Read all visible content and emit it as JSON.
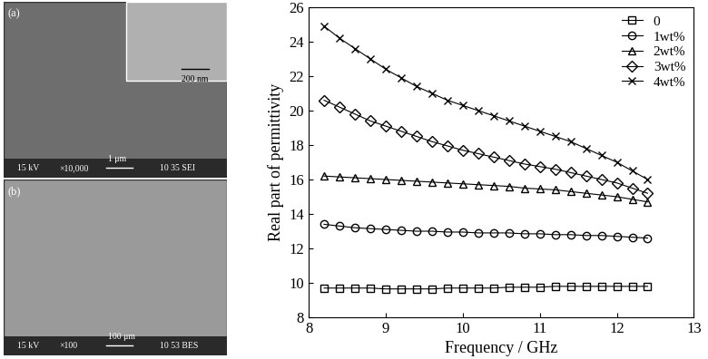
{
  "chart_data": {
    "type": "line",
    "xlabel": "Frequency / GHz",
    "ylabel": "Real part of permittivity",
    "x": [
      8.2,
      8.4,
      8.6,
      8.8,
      9.0,
      9.2,
      9.4,
      9.6,
      9.8,
      10.0,
      10.2,
      10.4,
      10.6,
      10.8,
      11.0,
      11.2,
      11.4,
      11.6,
      11.8,
      12.0,
      12.2,
      12.4
    ],
    "series": [
      {
        "name": "0",
        "color": "#000000",
        "marker": "square",
        "values": [
          9.7,
          9.7,
          9.7,
          9.7,
          9.65,
          9.65,
          9.65,
          9.65,
          9.7,
          9.7,
          9.7,
          9.7,
          9.75,
          9.75,
          9.75,
          9.8,
          9.8,
          9.8,
          9.8,
          9.8,
          9.8,
          9.8
        ]
      },
      {
        "name": "1wt%",
        "color": "#000000",
        "marker": "circle",
        "values": [
          13.4,
          13.3,
          13.2,
          13.15,
          13.1,
          13.05,
          13.0,
          13.0,
          12.95,
          12.95,
          12.9,
          12.9,
          12.9,
          12.85,
          12.85,
          12.8,
          12.8,
          12.75,
          12.75,
          12.7,
          12.65,
          12.6
        ]
      },
      {
        "name": "2wt%",
        "color": "#000000",
        "marker": "triangle",
        "values": [
          16.2,
          16.15,
          16.1,
          16.05,
          16.0,
          15.95,
          15.9,
          15.85,
          15.8,
          15.75,
          15.7,
          15.65,
          15.6,
          15.5,
          15.45,
          15.4,
          15.3,
          15.2,
          15.1,
          15.0,
          14.85,
          14.7
        ]
      },
      {
        "name": "3wt%",
        "color": "#000000",
        "marker": "diamond",
        "values": [
          20.6,
          20.2,
          19.8,
          19.4,
          19.1,
          18.8,
          18.5,
          18.2,
          17.95,
          17.7,
          17.5,
          17.3,
          17.1,
          16.9,
          16.75,
          16.6,
          16.4,
          16.2,
          16.0,
          15.8,
          15.5,
          15.2
        ]
      },
      {
        "name": "4wt%",
        "color": "#000000",
        "marker": "x",
        "values": [
          24.9,
          24.2,
          23.6,
          23.0,
          22.4,
          21.9,
          21.4,
          21.0,
          20.6,
          20.3,
          20.0,
          19.7,
          19.4,
          19.1,
          18.8,
          18.5,
          18.2,
          17.8,
          17.4,
          17.0,
          16.5,
          16.0
        ]
      }
    ],
    "xlim": [
      8,
      13
    ],
    "xticks": [
      8,
      9,
      10,
      11,
      12,
      13
    ],
    "ylim": [
      8,
      26
    ],
    "yticks": [
      8,
      10,
      12,
      14,
      16,
      18,
      20,
      22,
      24,
      26
    ],
    "legend": "upper right",
    "grid": false
  },
  "micrographs": [
    {
      "label": "(a)",
      "voltage": "15 kV",
      "magnification": "×10,000",
      "scale_bar": "1 μm",
      "info": "10 35 SEI",
      "inset_scale_bar": "200 nm"
    },
    {
      "label": "(b)",
      "voltage": "15 kV",
      "magnification": "×100",
      "scale_bar": "100 μm",
      "info": "10 53 BES"
    }
  ]
}
